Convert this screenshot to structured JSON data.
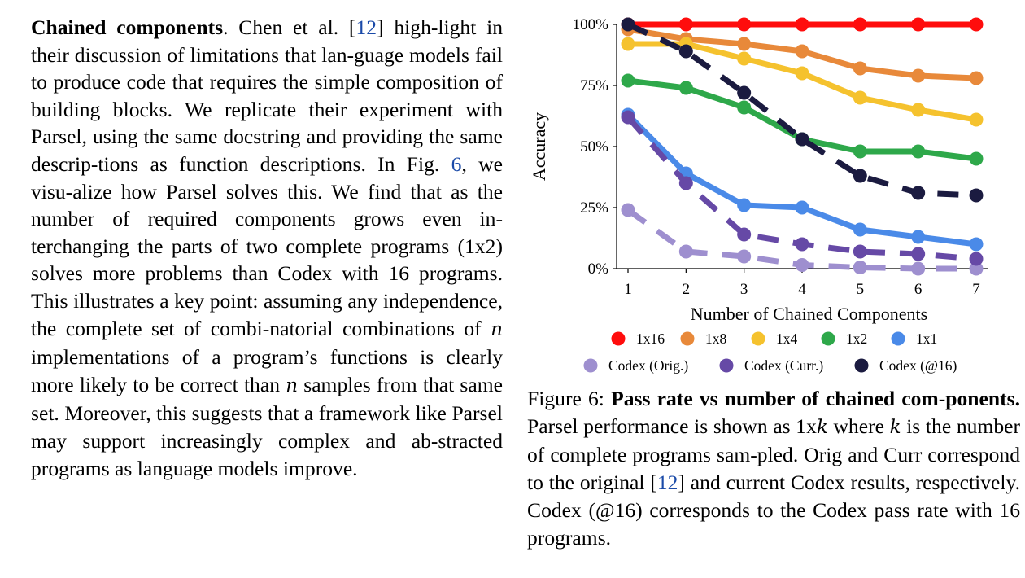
{
  "left_paragraph": {
    "heading": "Chained components",
    "after_heading": ". Chen et al. [",
    "cite_1": "12",
    "seg_1": "] high-light in their discussion of limitations that lan-guage models fail to produce code that requires the simple composition of building blocks. We replicate their experiment with Parsel, using the same docstring and providing the same descrip-tions as function descriptions. In Fig. ",
    "fig_ref": "6",
    "seg_2": ", we visu-alize how Parsel solves this. We find that as the number of required components grows even in-terchanging the parts of two complete programs (1x2) solves more problems than Codex with 16 programs. This illustrates a key point: assuming any independence, the complete set of combi-natorial combinations of ",
    "math_n1": "n",
    "seg_3": " implementations of a program’s functions is clearly more likely to be correct than ",
    "math_n2": "n",
    "seg_4": " samples from that same set. Moreover, this suggests that a framework like Parsel may support increasingly complex and ab-stracted programs as language models improve."
  },
  "caption": {
    "label": "Figure 6:",
    "bold_title": "Pass rate vs number of chained com-ponents.",
    "seg_1": " Parsel performance is shown as 1x",
    "math_k1": "k",
    "seg_2": " where ",
    "math_k2": "k",
    "seg_3": " is the number of complete programs sam-pled. Orig and Curr correspond to the original [",
    "cite": "12",
    "seg_4": "] and current Codex results, respectively.  Codex (@16) corresponds to the Codex pass rate with 16 programs."
  },
  "chart_data": {
    "type": "line",
    "xlabel": "Number of Chained Components",
    "ylabel": "Accuracy",
    "x": [
      1,
      2,
      3,
      4,
      5,
      6,
      7
    ],
    "ylim": [
      0,
      100
    ],
    "ytick_labels": [
      "0%",
      "25%",
      "50%",
      "75%",
      "100%"
    ],
    "yticks": [
      0,
      25,
      50,
      75,
      100
    ],
    "grid": false,
    "legend_placement": "bottom",
    "series": [
      {
        "name": "1x16",
        "color": "#ff0d0d",
        "dashed": false,
        "values": [
          100,
          100,
          100,
          100,
          100,
          100,
          100
        ]
      },
      {
        "name": "1x8",
        "color": "#e8893a",
        "dashed": false,
        "values": [
          98,
          94,
          92,
          89,
          82,
          79,
          78
        ]
      },
      {
        "name": "1x4",
        "color": "#f5c22e",
        "dashed": false,
        "values": [
          92,
          92,
          86,
          80,
          70,
          65,
          61
        ]
      },
      {
        "name": "1x2",
        "color": "#2ea84a",
        "dashed": false,
        "values": [
          77,
          74,
          66,
          53,
          48,
          48,
          45
        ]
      },
      {
        "name": "1x1",
        "color": "#4a8ae8",
        "dashed": false,
        "values": [
          63,
          39,
          26,
          25,
          16,
          13,
          10
        ]
      },
      {
        "name": "Codex (Orig.)",
        "color": "#9e8fcf",
        "dashed": true,
        "values": [
          24,
          7,
          5,
          1.5,
          0.5,
          0,
          0
        ]
      },
      {
        "name": "Codex (Curr.)",
        "color": "#6649a6",
        "dashed": true,
        "values": [
          62,
          35,
          14,
          10,
          7,
          6,
          4
        ]
      },
      {
        "name": "Codex (@16)",
        "color": "#1b1b40",
        "dashed": true,
        "values": [
          100,
          89,
          72,
          53,
          38,
          31,
          30
        ]
      }
    ]
  }
}
